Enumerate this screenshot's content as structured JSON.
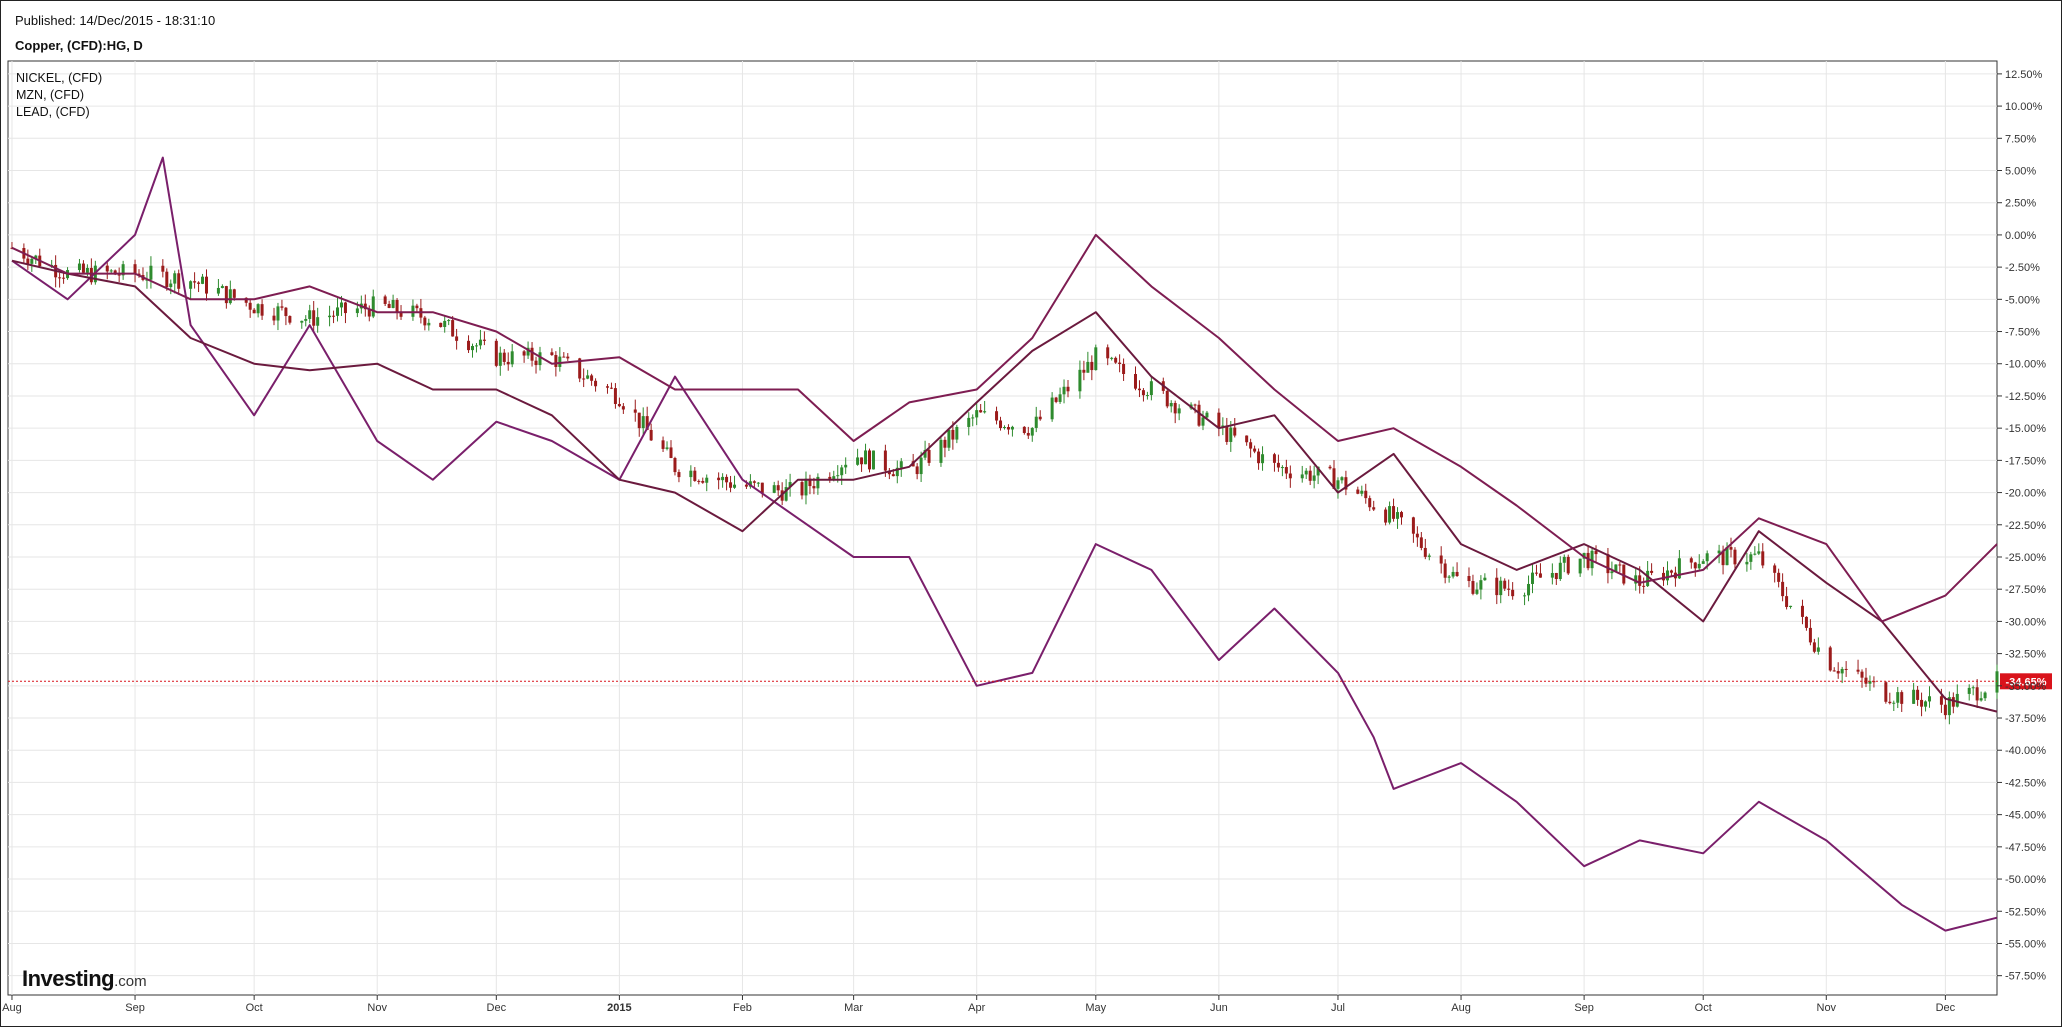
{
  "header": {
    "published": "Published: 14/Dec/2015 - 18:31:10",
    "title": "Copper, (CFD):HG, D"
  },
  "logo": {
    "main": "Investing",
    "suffix": ".com"
  },
  "colors": {
    "nickel": "#7a1f6b",
    "mzn": "#6b1a3e",
    "lead": "#7e1d52",
    "up": "#2e8b2e",
    "down": "#9b1b1b",
    "grid": "#e6e6e6",
    "current_line": "#d9131b"
  },
  "chart_data": {
    "type": "line",
    "title": "Copper, (CFD):HG, D",
    "xlabel": "",
    "ylabel": "",
    "ylim": [
      -59,
      13.5
    ],
    "x_tick_labels": [
      "Aug",
      "Sep",
      "Oct",
      "Nov",
      "Dec",
      "2015",
      "Feb",
      "Mar",
      "Apr",
      "May",
      "Jun",
      "Jul",
      "Aug",
      "Sep",
      "Oct",
      "Nov",
      "Dec"
    ],
    "y_tick_labels": [
      "12.50%",
      "10.00%",
      "7.50%",
      "5.00%",
      "2.50%",
      "0.00%",
      "-2.50%",
      "-5.00%",
      "-7.50%",
      "-10.00%",
      "-12.50%",
      "-15.00%",
      "-17.50%",
      "-20.00%",
      "-22.50%",
      "-25.00%",
      "-27.50%",
      "-30.00%",
      "-32.50%",
      "-35.00%",
      "-37.50%",
      "-40.00%",
      "-42.50%",
      "-45.00%",
      "-47.50%",
      "-50.00%",
      "-52.50%",
      "-55.00%",
      "-57.50%"
    ],
    "x_range": [
      "2014-07-31",
      "2015-12-14"
    ],
    "legend": [
      "NICKEL,  (CFD)",
      "MZN,  (CFD)",
      "LEAD,  (CFD)"
    ],
    "legend_position": "top-left",
    "grid": true,
    "current_value_label": "-34.65%",
    "current_value": -34.65,
    "primary_series": {
      "name": "Copper, (CFD):HG, D",
      "type": "candlestick",
      "x": [
        "2014-08-01",
        "2014-08-15",
        "2014-09-01",
        "2014-09-15",
        "2014-10-01",
        "2014-10-15",
        "2014-11-01",
        "2014-11-15",
        "2014-12-01",
        "2014-12-15",
        "2015-01-01",
        "2015-01-15",
        "2015-02-01",
        "2015-02-15",
        "2015-03-01",
        "2015-03-15",
        "2015-04-01",
        "2015-04-15",
        "2015-05-01",
        "2015-05-15",
        "2015-06-01",
        "2015-06-15",
        "2015-07-01",
        "2015-07-15",
        "2015-08-01",
        "2015-08-15",
        "2015-09-01",
        "2015-09-15",
        "2015-10-01",
        "2015-10-15",
        "2015-11-01",
        "2015-11-15",
        "2015-12-01",
        "2015-12-14"
      ],
      "values": [
        -1,
        -3,
        -3,
        -3.5,
        -5.5,
        -6.5,
        -5.5,
        -6.5,
        -9.5,
        -9.5,
        -12.5,
        -18,
        -19.5,
        -20,
        -17,
        -18.5,
        -14,
        -15,
        -9.5,
        -12,
        -15,
        -18,
        -19,
        -22,
        -27,
        -27.5,
        -25,
        -27,
        -25,
        -25,
        -33,
        -35.5,
        -36.5,
        -34.65
      ]
    },
    "series": [
      {
        "name": "NICKEL,  (CFD)",
        "x": [
          "2014-08-01",
          "2014-08-15",
          "2014-09-01",
          "2014-09-08",
          "2014-09-15",
          "2014-10-01",
          "2014-10-15",
          "2014-11-01",
          "2014-11-15",
          "2014-12-01",
          "2014-12-15",
          "2015-01-01",
          "2015-01-15",
          "2015-02-01",
          "2015-02-15",
          "2015-03-01",
          "2015-03-15",
          "2015-04-01",
          "2015-04-15",
          "2015-05-01",
          "2015-05-15",
          "2015-06-01",
          "2015-06-15",
          "2015-07-01",
          "2015-07-10",
          "2015-07-15",
          "2015-08-01",
          "2015-08-15",
          "2015-09-01",
          "2015-09-15",
          "2015-10-01",
          "2015-10-15",
          "2015-11-01",
          "2015-11-20",
          "2015-12-01",
          "2015-12-14"
        ],
        "values": [
          -2,
          -5,
          0,
          6,
          -7,
          -14,
          -7,
          -16,
          -19,
          -14.5,
          -16,
          -19,
          -11,
          -19,
          -22,
          -25,
          -25,
          -35,
          -34,
          -24,
          -26,
          -33,
          -29,
          -34,
          -39,
          -43,
          -41,
          -44,
          -49,
          -47,
          -48,
          -44,
          -47,
          -52,
          -54,
          -53
        ]
      },
      {
        "name": "MZN,  (CFD)",
        "x": [
          "2014-08-01",
          "2014-08-15",
          "2014-09-01",
          "2014-09-15",
          "2014-10-01",
          "2014-10-15",
          "2014-11-01",
          "2014-11-15",
          "2014-12-01",
          "2014-12-15",
          "2015-01-01",
          "2015-01-15",
          "2015-02-01",
          "2015-02-15",
          "2015-03-01",
          "2015-03-15",
          "2015-04-01",
          "2015-04-15",
          "2015-05-01",
          "2015-05-15",
          "2015-06-01",
          "2015-06-15",
          "2015-07-01",
          "2015-07-15",
          "2015-08-01",
          "2015-08-15",
          "2015-09-01",
          "2015-09-15",
          "2015-10-01",
          "2015-10-15",
          "2015-11-01",
          "2015-11-15",
          "2015-12-01",
          "2015-12-14"
        ],
        "values": [
          -2,
          -3,
          -4,
          -8,
          -10,
          -10.5,
          -10,
          -12,
          -12,
          -14,
          -19,
          -20,
          -23,
          -19,
          -19,
          -18,
          -13,
          -9,
          -6,
          -11,
          -15,
          -14,
          -20,
          -17,
          -24,
          -26,
          -24,
          -26,
          -30,
          -23,
          -27,
          -30,
          -36,
          -37
        ]
      },
      {
        "name": "LEAD,  (CFD)",
        "x": [
          "2014-08-01",
          "2014-08-15",
          "2014-09-01",
          "2014-09-15",
          "2014-10-01",
          "2014-10-15",
          "2014-11-01",
          "2014-11-15",
          "2014-12-01",
          "2014-12-15",
          "2015-01-01",
          "2015-01-15",
          "2015-02-01",
          "2015-02-15",
          "2015-03-01",
          "2015-03-15",
          "2015-04-01",
          "2015-04-15",
          "2015-05-01",
          "2015-05-15",
          "2015-06-01",
          "2015-06-15",
          "2015-07-01",
          "2015-07-15",
          "2015-08-01",
          "2015-08-15",
          "2015-09-01",
          "2015-09-15",
          "2015-10-01",
          "2015-10-15",
          "2015-11-01",
          "2015-11-15",
          "2015-12-01",
          "2015-12-14"
        ],
        "values": [
          -1,
          -3,
          -3,
          -5,
          -5,
          -4,
          -6,
          -6,
          -7.5,
          -10,
          -9.5,
          -12,
          -12,
          -12,
          -16,
          -13,
          -12,
          -8,
          0,
          -4,
          -8,
          -12,
          -16,
          -15,
          -18,
          -21,
          -25,
          -27,
          -26,
          -22,
          -24,
          -30,
          -28,
          -24
        ]
      }
    ]
  }
}
